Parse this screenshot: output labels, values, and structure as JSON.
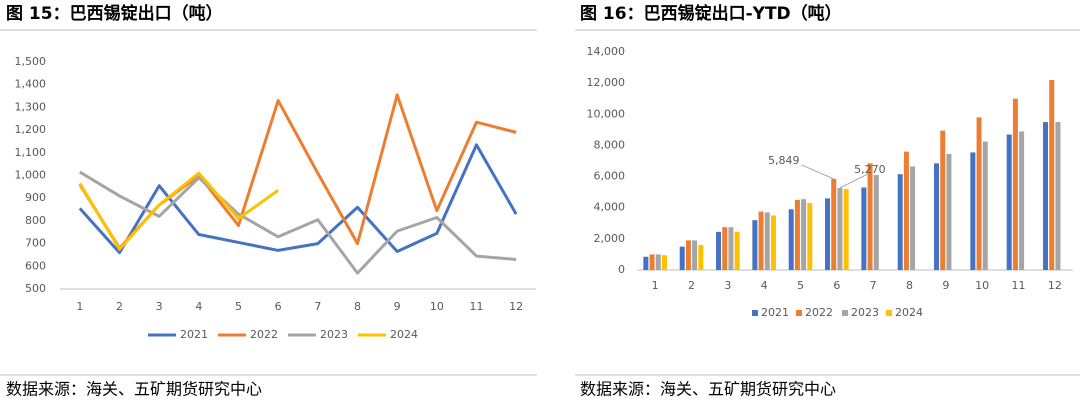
{
  "chart_data": [
    {
      "type": "line",
      "title": "图 15：巴西锡锭出口（吨）",
      "source": "数据来源：海关、五矿期货研究中心",
      "categories": [
        "1",
        "2",
        "3",
        "4",
        "5",
        "6",
        "7",
        "8",
        "9",
        "10",
        "11",
        "12"
      ],
      "ylim": [
        500,
        1500
      ],
      "yticks": [
        500,
        600,
        700,
        800,
        900,
        {
          "value": 1000,
          "label": "1,000"
        },
        {
          "value": 1100,
          "label": "1,100"
        },
        {
          "value": 1200,
          "label": "1,200"
        },
        {
          "value": 1300,
          "label": "1,300"
        },
        {
          "value": 1400,
          "label": "1,400"
        },
        {
          "value": 1500,
          "label": "1,500"
        }
      ],
      "grid": false,
      "legend": "bottom",
      "series": [
        {
          "name": "2021",
          "color": "#4472c4",
          "values": [
            855,
            660,
            955,
            740,
            705,
            670,
            700,
            860,
            665,
            745,
            1135,
            830
          ]
        },
        {
          "name": "2022",
          "color": "#ed7d31",
          "values": [
            960,
            680,
            870,
            1000,
            780,
            1330,
            1010,
            700,
            1355,
            845,
            1235,
            1190
          ]
        },
        {
          "name": "2023",
          "color": "#a5a5a5",
          "values": [
            1015,
            910,
            820,
            990,
            830,
            730,
            805,
            570,
            755,
            815,
            645,
            630
          ]
        },
        {
          "name": "2024",
          "color": "#ffc000",
          "values": [
            965,
            675,
            870,
            1010,
            810,
            935,
            null,
            null,
            null,
            null,
            null,
            null
          ]
        }
      ]
    },
    {
      "type": "bar",
      "title": "图 16：巴西锡锭出口-YTD（吨）",
      "source": "数据来源：海关、五矿期货研究中心",
      "categories": [
        "1",
        "2",
        "3",
        "4",
        "5",
        "6",
        "7",
        "8",
        "9",
        "10",
        "11",
        "12"
      ],
      "ylim": [
        0,
        14000
      ],
      "yticks": [
        0,
        {
          "value": 2000,
          "label": "2,000"
        },
        {
          "value": 4000,
          "label": "4,000"
        },
        {
          "value": 6000,
          "label": "6,000"
        },
        {
          "value": 8000,
          "label": "8,000"
        },
        {
          "value": 10000,
          "label": "10,000"
        },
        {
          "value": 12000,
          "label": "12,000"
        },
        {
          "value": 14000,
          "label": "14,000"
        }
      ],
      "grid": false,
      "legend": "bottom",
      "series": [
        {
          "name": "2021",
          "color": "#4472c4",
          "values": [
            850,
            1500,
            2450,
            3200,
            3900,
            4600,
            5300,
            6150,
            6850,
            7550,
            8700,
            9500
          ]
        },
        {
          "name": "2022",
          "color": "#ed7d31",
          "values": [
            1000,
            1900,
            2750,
            3750,
            4500,
            5849,
            6850,
            7600,
            8950,
            9800,
            11000,
            12200
          ],
          "value_labels": [
            null,
            null,
            null,
            null,
            null,
            "5,849",
            null,
            null,
            null,
            null,
            null,
            null
          ]
        },
        {
          "name": "2023",
          "color": "#a5a5a5",
          "values": [
            1000,
            1900,
            2750,
            3700,
            4550,
            5270,
            6100,
            6650,
            7450,
            8250,
            8900,
            9500
          ],
          "value_labels": [
            null,
            null,
            null,
            null,
            null,
            "5,270",
            null,
            null,
            null,
            null,
            null,
            null
          ]
        },
        {
          "name": "2024",
          "color": "#ffc000",
          "values": [
            950,
            1600,
            2450,
            3500,
            4300,
            5200,
            null,
            null,
            null,
            null,
            null,
            null
          ]
        }
      ]
    }
  ]
}
